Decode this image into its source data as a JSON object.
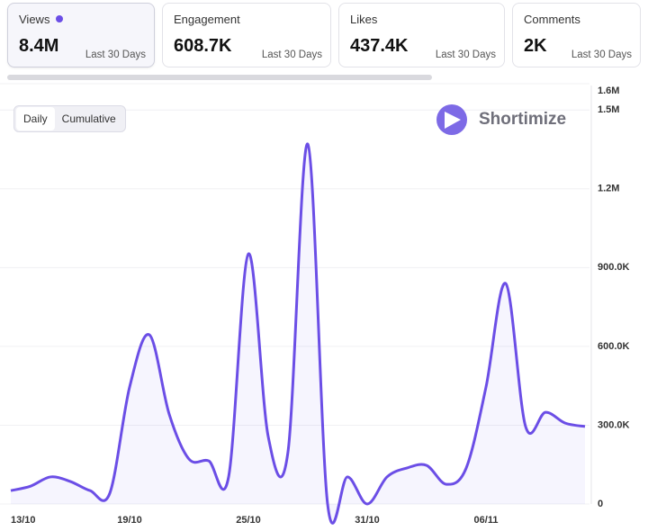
{
  "cards": [
    {
      "title": "Views",
      "value": "8.4M",
      "period": "Last 30 Days"
    },
    {
      "title": "Engagement",
      "value": "608.7K",
      "period": "Last 30 Days"
    },
    {
      "title": "Likes",
      "value": "437.4K",
      "period": "Last 30 Days"
    },
    {
      "title": "Comments",
      "value": "2K",
      "period": "Last 30 Days"
    }
  ],
  "toggle": [
    "Daily",
    "Cumulative"
  ],
  "brand": "Shortimize",
  "chart_data": {
    "type": "line",
    "categories": [
      "13/10",
      null,
      null,
      null,
      null,
      null,
      "19/10",
      null,
      null,
      null,
      null,
      null,
      "25/10",
      null,
      null,
      null,
      null,
      null,
      "31/10",
      null,
      null,
      null,
      null,
      null,
      "06/11",
      null,
      null,
      null,
      null,
      null
    ],
    "series": [
      {
        "name": "Views",
        "color": "#6b4ee6",
        "values": [
          51000,
          68000,
          103000,
          86000,
          51000,
          41000,
          445000,
          644000,
          342000,
          171000,
          164000,
          103000,
          952000,
          257000,
          199000,
          1370000,
          0,
          103000,
          0,
          103000,
          137000,
          147000,
          75000,
          137000,
          445000,
          839000,
          295000,
          349000,
          308000,
          295000
        ]
      }
    ],
    "ylim": [
      0,
      1600000
    ],
    "yticks": [
      0,
      {
        "value": 300000,
        "label": "300.0K"
      },
      {
        "value": 600000,
        "label": "600.0K"
      },
      {
        "value": 900000,
        "label": "900.0K"
      },
      {
        "value": 1200000,
        "label": "1.2M"
      },
      {
        "value": 1500000,
        "label": "1.5M"
      },
      {
        "value": 1600000,
        "label": "1.6M"
      }
    ],
    "grid": true
  }
}
